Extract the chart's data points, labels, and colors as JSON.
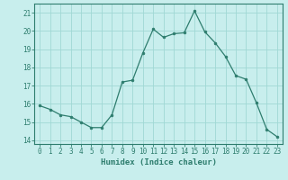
{
  "x": [
    0,
    1,
    2,
    3,
    4,
    5,
    6,
    7,
    8,
    9,
    10,
    11,
    12,
    13,
    14,
    15,
    16,
    17,
    18,
    19,
    20,
    21,
    22,
    23
  ],
  "y": [
    15.9,
    15.7,
    15.4,
    15.3,
    15.0,
    14.7,
    14.7,
    15.4,
    17.2,
    17.3,
    18.8,
    20.1,
    19.65,
    19.85,
    19.9,
    21.1,
    19.95,
    19.35,
    18.6,
    17.55,
    17.35,
    16.05,
    14.6,
    14.2
  ],
  "line_color": "#2e7d6e",
  "marker": "o",
  "marker_size": 2.0,
  "bg_color": "#c8eeed",
  "grid_color": "#a0d8d5",
  "xlabel": "Humidex (Indice chaleur)",
  "xlim": [
    -0.5,
    23.5
  ],
  "ylim": [
    13.8,
    21.5
  ],
  "yticks": [
    14,
    15,
    16,
    17,
    18,
    19,
    20,
    21
  ],
  "xticks": [
    0,
    1,
    2,
    3,
    4,
    5,
    6,
    7,
    8,
    9,
    10,
    11,
    12,
    13,
    14,
    15,
    16,
    17,
    18,
    19,
    20,
    21,
    22,
    23
  ],
  "tick_color": "#2e7d6e",
  "tick_fontsize": 5.5,
  "xlabel_fontsize": 6.5,
  "axis_color": "#2e7d6e"
}
